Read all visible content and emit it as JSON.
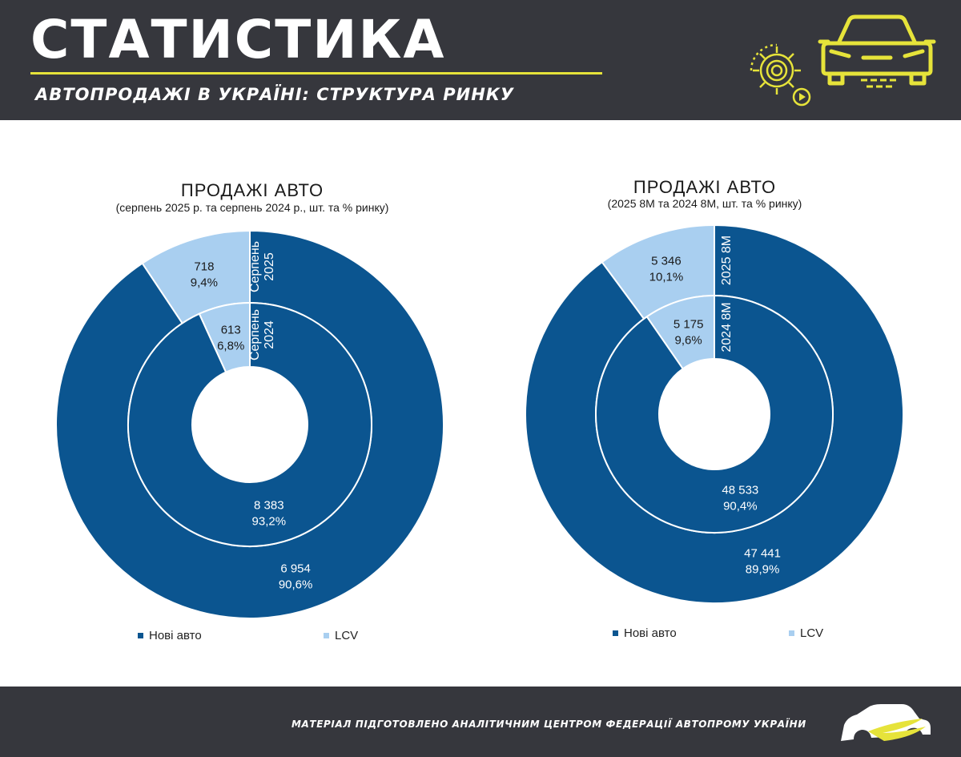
{
  "header": {
    "title": "СТАТИСТИКА",
    "subtitle": "АВТОПРОДАЖІ В УКРАЇНІ: СТРУКТУРА РИНКУ"
  },
  "footer": {
    "text": "МАТЕРІАЛ ПІДГОТОВЛЕНО АНАЛІТИЧНИМ ЦЕНТРОМ ФЕДЕРАЦІЇ АВТОПРОМУ УКРАЇНИ"
  },
  "colors": {
    "header_bg": "#36373d",
    "accent_yellow": "#e6e33a",
    "new_cars": "#0b5590",
    "lcv": "#a9cff0"
  },
  "icons": [
    "gear-icon",
    "play-icon",
    "car-icon",
    "footer-logo-icon"
  ],
  "chart_data": [
    {
      "type": "donut",
      "title": "ПРОДАЖІ АВТО",
      "subtitle": "(серпень 2025 р. та серпень 2024 р., шт. та % ринку)",
      "categories": [
        "Нові авто",
        "LCV"
      ],
      "rings": [
        {
          "name": "Серпень 2025",
          "position": "outer",
          "values": [
            6954,
            718
          ],
          "labels": [
            "6 954",
            "718"
          ],
          "percents": [
            "90,6%",
            "9,4%"
          ]
        },
        {
          "name": "Серпень 2024",
          "position": "inner",
          "values": [
            8383,
            613
          ],
          "labels": [
            "8 383",
            "613"
          ],
          "percents": [
            "93,2%",
            "6,8%"
          ]
        }
      ],
      "legend": [
        "Нові авто",
        "LCV"
      ],
      "legend_position": "bottom"
    },
    {
      "type": "donut",
      "title": "ПРОДАЖІ АВТО",
      "subtitle": "(2025 8М та 2024 8М, шт. та % ринку)",
      "categories": [
        "Нові авто",
        "LCV"
      ],
      "rings": [
        {
          "name": "2025 8М",
          "position": "outer",
          "values": [
            47441,
            5346
          ],
          "labels": [
            "47 441",
            "5 346"
          ],
          "percents": [
            "89,9%",
            "10,1%"
          ]
        },
        {
          "name": "2024 8М",
          "position": "inner",
          "values": [
            48533,
            5175
          ],
          "labels": [
            "48 533",
            "5 175"
          ],
          "percents": [
            "90,4%",
            "9,6%"
          ]
        }
      ],
      "legend": [
        "Нові авто",
        "LCV"
      ],
      "legend_position": "bottom"
    }
  ]
}
